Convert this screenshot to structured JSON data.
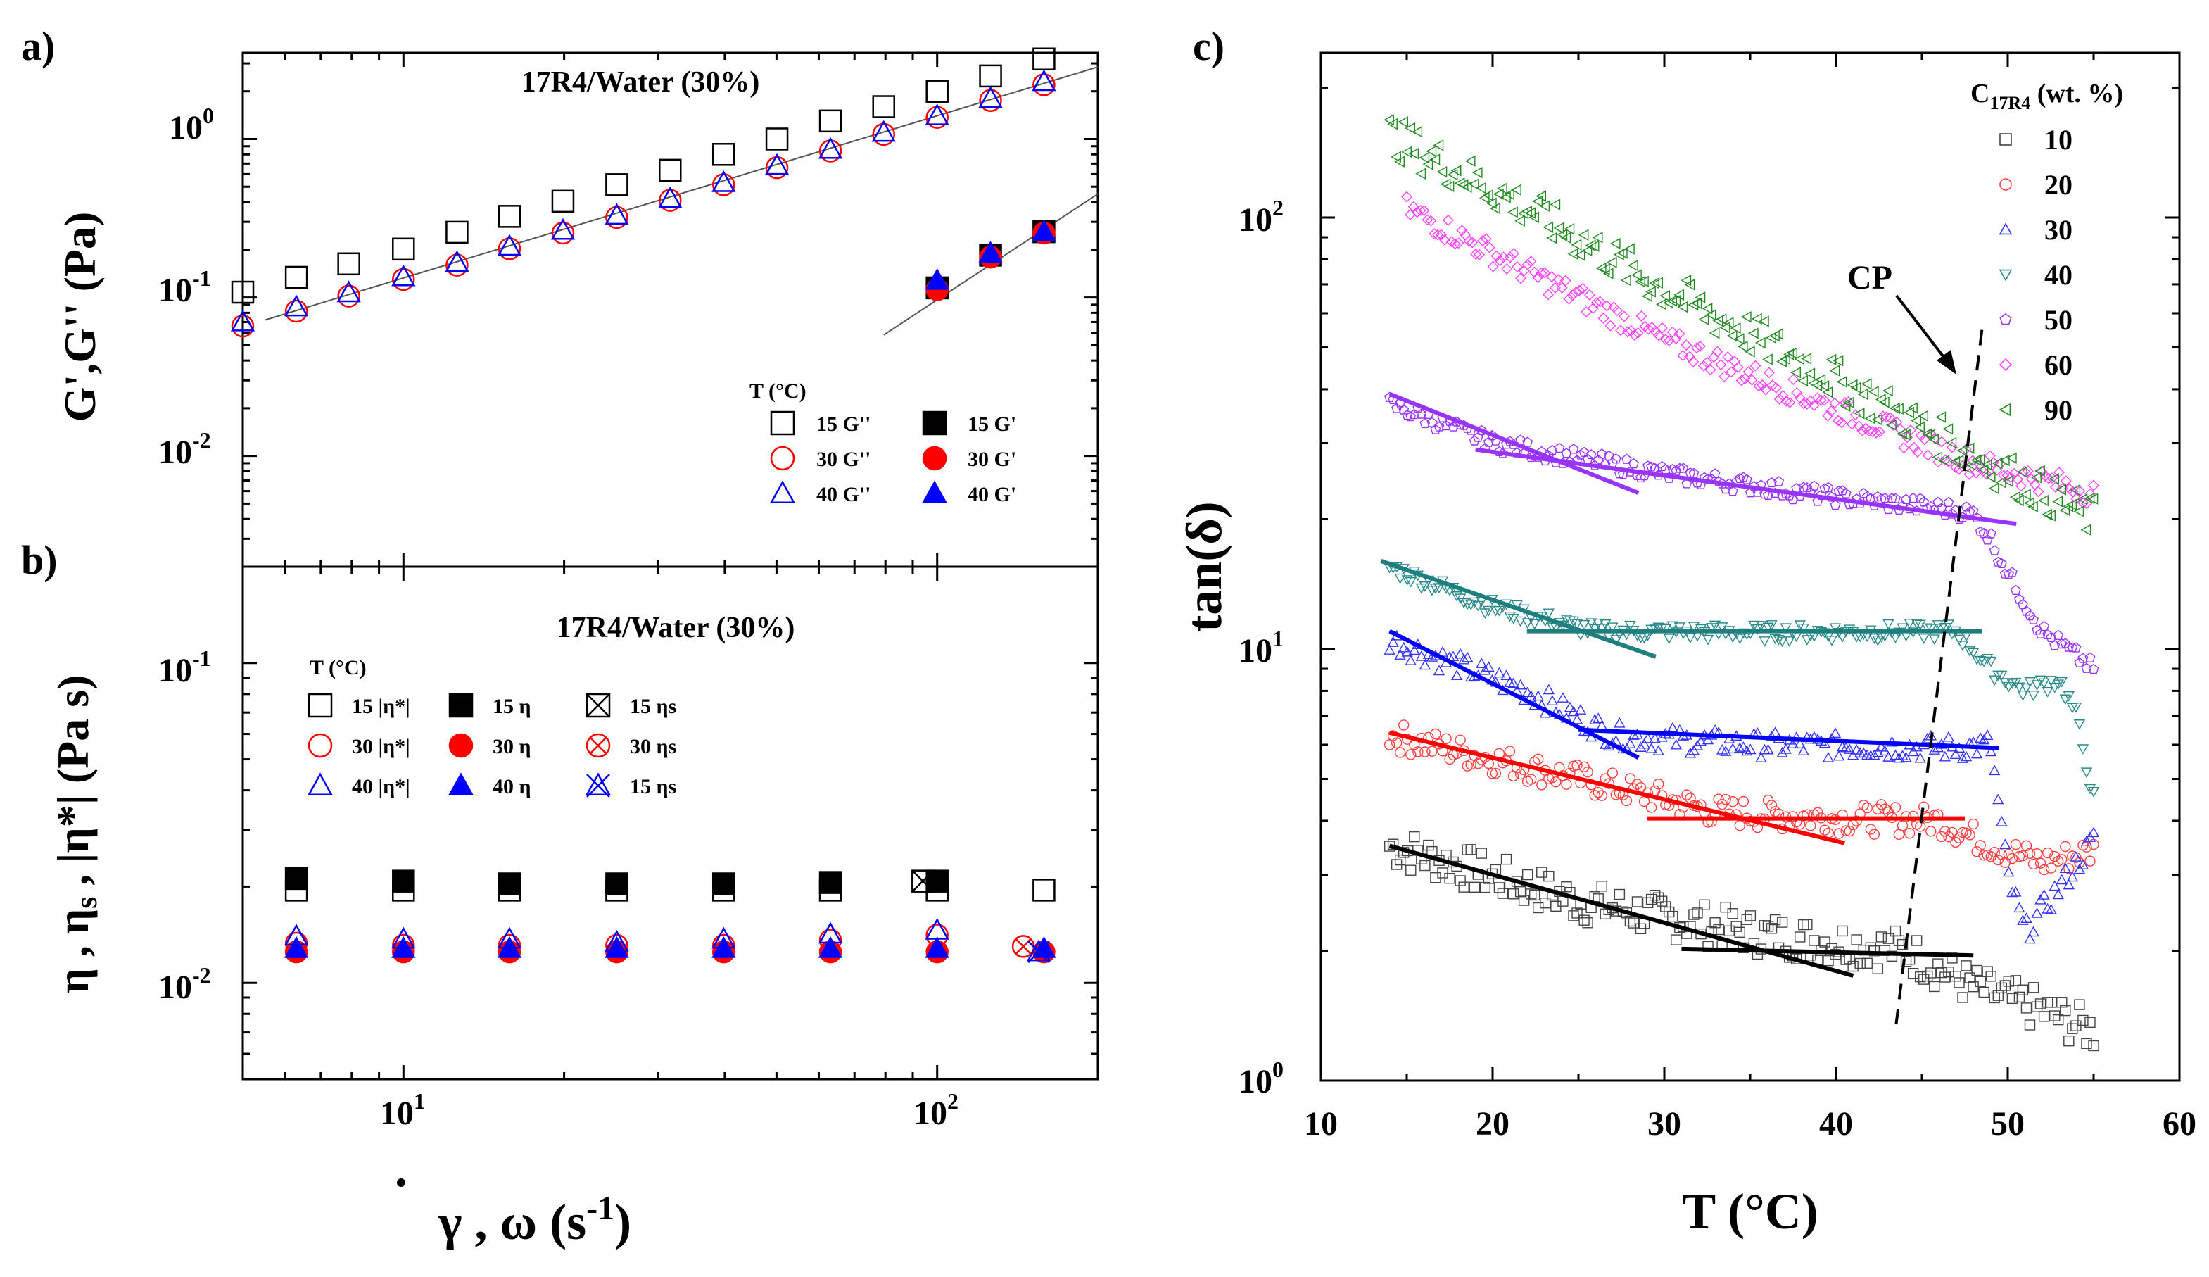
{
  "chart_data": [
    {
      "panel": "a)",
      "type": "scatter",
      "scale": "log-log",
      "title": "17R4/Water (30%)",
      "xlabel": "γ̇ , ω (s-1)",
      "ylabel": "G',G'' (Pa)",
      "xlim": [
        5,
        200
      ],
      "ylim": [
        0.002,
        3.5
      ],
      "y_ticks": [
        "10^0",
        "10^-1",
        "10^-2"
      ],
      "legend_title": "T (°C)",
      "series": [
        {
          "name": "15 G''",
          "marker": "square",
          "filled": false,
          "color": "#000000",
          "x": [
            5,
            6.3,
            7.9,
            10,
            12.6,
            15.8,
            19.9,
            25.1,
            31.6,
            39.8,
            50.1,
            63.1,
            79.4,
            100,
            125.9,
            158.5
          ],
          "y": [
            0.108,
            0.134,
            0.163,
            0.202,
            0.258,
            0.325,
            0.405,
            0.515,
            0.635,
            0.8,
            1.0,
            1.3,
            1.6,
            2.0,
            2.5,
            3.2
          ]
        },
        {
          "name": "30 G''",
          "marker": "circle",
          "filled": false,
          "color": "#ff0000",
          "x": [
            5,
            6.3,
            7.9,
            10,
            12.6,
            15.8,
            19.9,
            25.1,
            31.6,
            39.8,
            50.1,
            63.1,
            79.4,
            100,
            125.9,
            158.5
          ],
          "y": [
            0.066,
            0.082,
            0.102,
            0.13,
            0.16,
            0.203,
            0.255,
            0.32,
            0.41,
            0.515,
            0.66,
            0.84,
            1.07,
            1.37,
            1.75,
            2.2
          ]
        },
        {
          "name": "40 G''",
          "marker": "triangle",
          "filled": false,
          "color": "#0000ff",
          "x": [
            5,
            6.3,
            7.9,
            10,
            12.6,
            15.8,
            19.9,
            25.1,
            31.6,
            39.8,
            50.1,
            63.1,
            79.4,
            100,
            125.9,
            158.5
          ],
          "y": [
            0.07,
            0.087,
            0.107,
            0.135,
            0.166,
            0.21,
            0.265,
            0.33,
            0.42,
            0.53,
            0.68,
            0.86,
            1.1,
            1.4,
            1.8,
            2.3
          ]
        },
        {
          "name": "15 G'",
          "marker": "square",
          "filled": true,
          "color": "#000000",
          "x": [
            100,
            125.9,
            158.5
          ],
          "y": [
            0.115,
            0.185,
            0.26
          ]
        },
        {
          "name": "30 G'",
          "marker": "circle",
          "filled": true,
          "color": "#ff0000",
          "x": [
            100,
            125.9,
            158.5
          ],
          "y": [
            0.112,
            0.18,
            0.255
          ]
        },
        {
          "name": "40 G'",
          "marker": "triangle",
          "filled": true,
          "color": "#0000ff",
          "x": [
            100,
            125.9,
            158.5
          ],
          "y": [
            0.128,
            0.19,
            0.26
          ]
        }
      ],
      "fit_lines": [
        {
          "x": [
            5.5,
            200
          ],
          "y": [
            0.072,
            2.85
          ]
        },
        {
          "x": [
            79.4,
            200
          ],
          "y": [
            0.058,
            0.45
          ]
        }
      ]
    },
    {
      "panel": "b)",
      "type": "scatter",
      "scale": "log-log",
      "title": "17R4/Water (30%)",
      "xlabel": "γ̇ , ω (s-1)",
      "ylabel": "η , ηs , |η*| (Pa s)",
      "xlim": [
        5,
        200
      ],
      "ylim": [
        0.005,
        0.2
      ],
      "x_ticks": [
        "10^1",
        "10^2"
      ],
      "y_ticks": [
        "10^-1",
        "10^-2"
      ],
      "legend_title": "T (°C)",
      "series": [
        {
          "name": "15 |η*|",
          "marker": "square",
          "filled": false,
          "color": "#000000",
          "x": [
            6.3,
            10,
            15.8,
            25.1,
            39.8,
            63.1,
            100,
            158.5
          ],
          "y": [
            0.0195,
            0.0195,
            0.0195,
            0.0195,
            0.0195,
            0.0195,
            0.0195,
            0.0195
          ]
        },
        {
          "name": "15 η",
          "marker": "square",
          "filled": true,
          "color": "#000000",
          "x": [
            6.3,
            10,
            15.8,
            25.1,
            39.8,
            63.1,
            100
          ],
          "y": [
            0.0212,
            0.0208,
            0.0204,
            0.0204,
            0.0204,
            0.0206,
            0.0208
          ]
        },
        {
          "name": "15 ηs",
          "marker": "crossed-square",
          "filled": false,
          "color": "#000000",
          "x": [
            94
          ],
          "y": [
            0.0208
          ]
        },
        {
          "name": "30 |η*|",
          "marker": "circle",
          "filled": false,
          "color": "#ff0000",
          "x": [
            6.3,
            10,
            15.8,
            25.1,
            39.8,
            63.1,
            100
          ],
          "y": [
            0.0133,
            0.0131,
            0.0131,
            0.0131,
            0.0131,
            0.0136,
            0.0141
          ]
        },
        {
          "name": "30 η",
          "marker": "circle",
          "filled": true,
          "color": "#ff0000",
          "x": [
            6.3,
            10,
            15.8,
            25.1,
            39.8,
            63.1,
            100,
            158.5
          ],
          "y": [
            0.0125,
            0.0125,
            0.0125,
            0.0125,
            0.0125,
            0.0125,
            0.0125,
            0.0125
          ]
        },
        {
          "name": "30 ηs",
          "marker": "crossed-circle",
          "filled": false,
          "color": "#ff0000",
          "x": [
            145
          ],
          "y": [
            0.013
          ]
        },
        {
          "name": "40 |η*|",
          "marker": "triangle",
          "filled": false,
          "color": "#0000ff",
          "x": [
            6.3,
            10,
            15.8,
            25.1,
            39.8,
            63.1,
            100
          ],
          "y": [
            0.014,
            0.0137,
            0.0137,
            0.0134,
            0.0137,
            0.0142,
            0.0146
          ]
        },
        {
          "name": "40 η",
          "marker": "triangle",
          "filled": true,
          "color": "#0000ff",
          "x": [
            6.3,
            10,
            15.8,
            25.1,
            39.8,
            63.1,
            100,
            158.5
          ],
          "y": [
            0.0128,
            0.0128,
            0.0128,
            0.0128,
            0.0128,
            0.0128,
            0.0128,
            0.0128
          ]
        },
        {
          "name": "15 ηs",
          "marker": "crossed-triangle",
          "filled": false,
          "color": "#0000ff",
          "x": [
            155
          ],
          "y": [
            0.0125
          ]
        }
      ]
    },
    {
      "panel": "c)",
      "type": "scatter",
      "scale": "semilog-y",
      "xlabel": "T (°C)",
      "ylabel": "tan(δ)",
      "xlim": [
        10,
        60
      ],
      "ylim": [
        1,
        250
      ],
      "x_ticks": [
        10,
        20,
        30,
        40,
        50,
        60
      ],
      "y_ticks": [
        "10^0",
        "10^1",
        "10^2"
      ],
      "legend_title": "C17R4 (wt. %)",
      "annotation": "CP",
      "cp_line": {
        "x": [
          43.5,
          48.5
        ],
        "y": [
          1.35,
          55
        ]
      },
      "series": [
        {
          "name": "10",
          "marker": "square",
          "color": "#444444",
          "x_range": [
            14,
            55
          ],
          "trend": [
            [
              14,
              3.5
            ],
            [
              25,
              2.6
            ],
            [
              35,
              2.2
            ],
            [
              44,
              2.0
            ],
            [
              48,
              1.65
            ],
            [
              52,
              1.45
            ],
            [
              55,
              1.3
            ]
          ]
        },
        {
          "name": "20",
          "marker": "circle",
          "color": "#ff4040",
          "x_range": [
            14,
            55
          ],
          "trend": [
            [
              14,
              6.3
            ],
            [
              25,
              5.0
            ],
            [
              33,
              4.2
            ],
            [
              40,
              4.05
            ],
            [
              46,
              4.0
            ],
            [
              49,
              3.5
            ],
            [
              52,
              3.2
            ],
            [
              55,
              3.4
            ]
          ]
        },
        {
          "name": "30",
          "marker": "triangle-up",
          "color": "#3333ff",
          "x_range": [
            14,
            55
          ],
          "trend": [
            [
              14,
              10.5
            ],
            [
              22,
              8.0
            ],
            [
              27,
              6.3
            ],
            [
              35,
              6.0
            ],
            [
              47,
              5.9
            ],
            [
              49,
              6.0
            ],
            [
              50,
              3.0
            ],
            [
              51,
              2.2
            ],
            [
              53,
              2.8
            ],
            [
              55,
              3.6
            ]
          ]
        },
        {
          "name": "40",
          "marker": "triangle-down",
          "color": "#2a8a8a",
          "x_range": [
            14,
            55
          ],
          "trend": [
            [
              14,
              15.5
            ],
            [
              20,
              12.5
            ],
            [
              26,
              11.0
            ],
            [
              36,
              10.9
            ],
            [
              47,
              11.0
            ],
            [
              49,
              9.0
            ],
            [
              51,
              8.0
            ],
            [
              53,
              8.5
            ],
            [
              54,
              7.0
            ],
            [
              55,
              4.5
            ]
          ]
        },
        {
          "name": "50",
          "marker": "pentagon",
          "color": "#9933ff",
          "x_range": [
            14,
            55
          ],
          "trend": [
            [
              14,
              37
            ],
            [
              20,
              30
            ],
            [
              30,
              25.5
            ],
            [
              40,
              22.5
            ],
            [
              47,
              21.0
            ],
            [
              48,
              20.5
            ],
            [
              49,
              18
            ],
            [
              50,
              15
            ],
            [
              52,
              11
            ],
            [
              55,
              9
            ]
          ]
        },
        {
          "name": "60",
          "marker": "diamond",
          "color": "#ff44ff",
          "x_range": [
            15,
            55
          ],
          "trend": [
            [
              15,
              105
            ],
            [
              22,
              75
            ],
            [
              30,
              52
            ],
            [
              40,
              36
            ],
            [
              48,
              27
            ],
            [
              55,
              23
            ]
          ]
        },
        {
          "name": "90",
          "marker": "triangle-left",
          "color": "#228b22",
          "x_range": [
            14,
            55
          ],
          "trend": [
            [
              14,
              155
            ],
            [
              22,
              105
            ],
            [
              30,
              68
            ],
            [
              40,
              42
            ],
            [
              48,
              28
            ],
            [
              55,
              20
            ]
          ]
        }
      ],
      "fit_lines": [
        {
          "series": "10",
          "color": "#000000",
          "x": [
            14,
            41
          ],
          "y": [
            3.5,
            1.75
          ]
        },
        {
          "series": "10",
          "color": "#000000",
          "x": [
            31,
            48
          ],
          "y": [
            2.02,
            1.95
          ]
        },
        {
          "series": "20",
          "color": "#ff0000",
          "x": [
            14,
            40.5
          ],
          "y": [
            6.4,
            3.55
          ]
        },
        {
          "series": "20",
          "color": "#ff0000",
          "x": [
            29,
            47.5
          ],
          "y": [
            4.05,
            4.05
          ]
        },
        {
          "series": "30",
          "color": "#0000ff",
          "x": [
            14,
            28.5
          ],
          "y": [
            11.0,
            5.6
          ]
        },
        {
          "series": "30",
          "color": "#0000ff",
          "x": [
            25,
            49.5
          ],
          "y": [
            6.5,
            5.9
          ]
        },
        {
          "series": "40",
          "color": "#1f7f7f",
          "x": [
            13.5,
            29.5
          ],
          "y": [
            16.0,
            9.6
          ]
        },
        {
          "series": "40",
          "color": "#1f7f7f",
          "x": [
            22,
            48.5
          ],
          "y": [
            11.0,
            11.0
          ]
        },
        {
          "series": "50",
          "color": "#9933ff",
          "x": [
            14,
            28.5
          ],
          "y": [
            39,
            23
          ]
        },
        {
          "series": "50",
          "color": "#9933ff",
          "x": [
            19,
            50.5
          ],
          "y": [
            29,
            19.5
          ]
        }
      ]
    }
  ]
}
